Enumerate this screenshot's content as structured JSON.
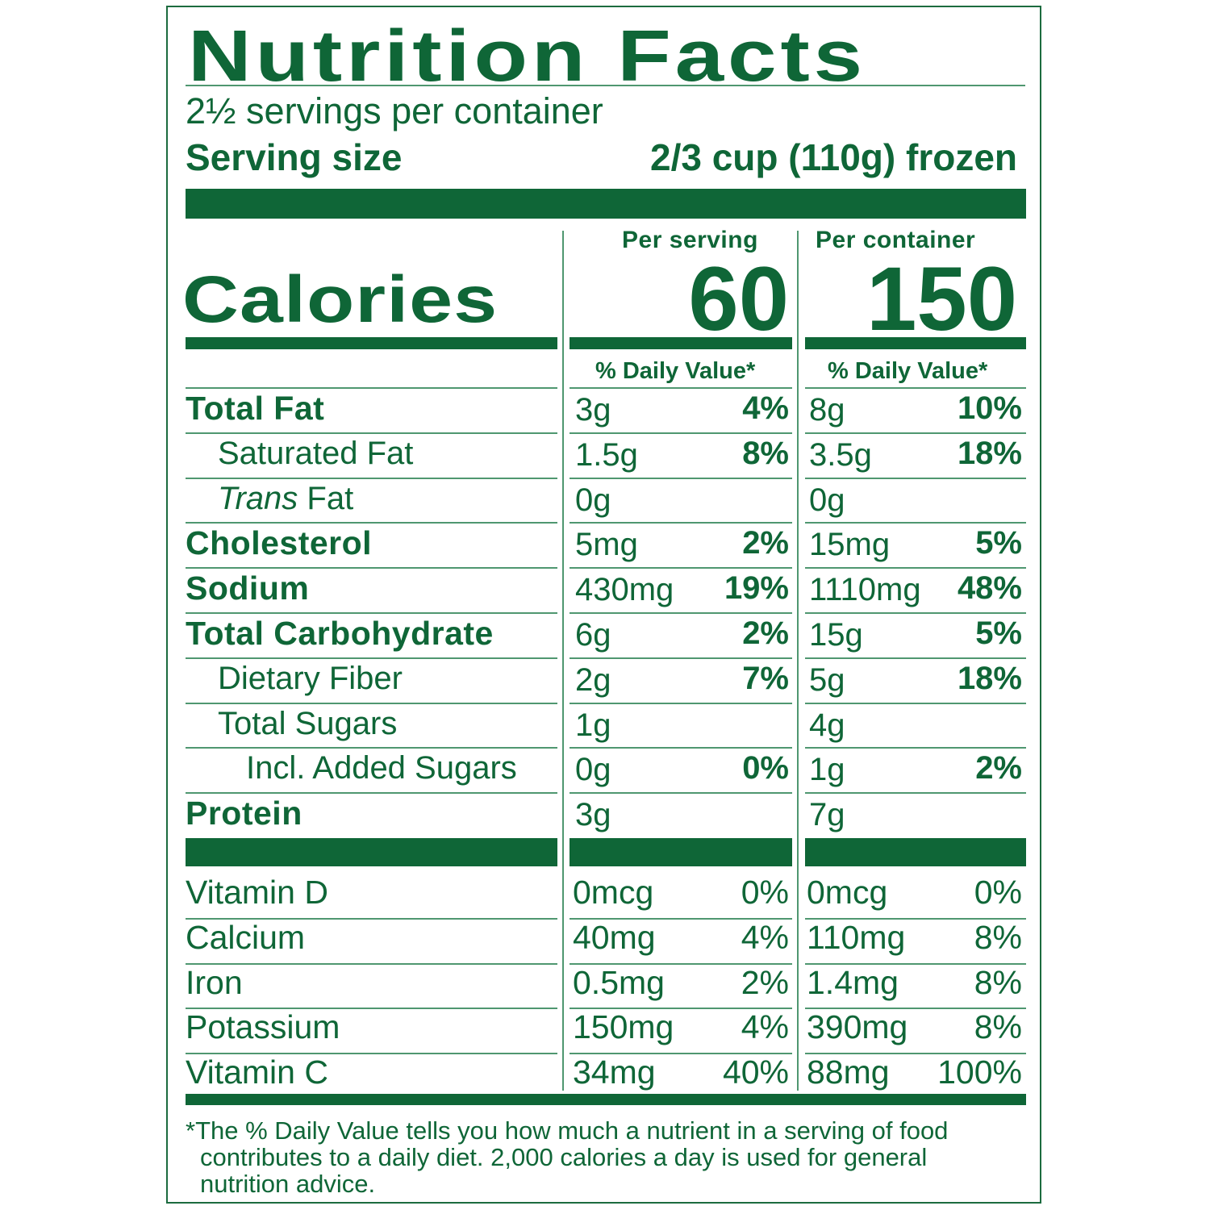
{
  "title": "Nutrition Facts",
  "servings_per_container": "2½ servings per container",
  "serving_size_label": "Serving size",
  "serving_size_value": "2/3 cup (110g) frozen",
  "columns": {
    "per_serving": "Per serving",
    "per_container": "Per container"
  },
  "calories": {
    "label": "Calories",
    "per_serving": "60",
    "per_container": "150"
  },
  "daily_value_header": "% Daily Value*",
  "nutrients": [
    {
      "name": "Total Fat",
      "bold": true,
      "indent": 0,
      "serving_amount": "3g",
      "serving_dv": "4%",
      "container_amount": "8g",
      "container_dv": "10%"
    },
    {
      "name": "Saturated Fat",
      "bold": false,
      "indent": 1,
      "serving_amount": "1.5g",
      "serving_dv": "8%",
      "container_amount": "3.5g",
      "container_dv": "18%"
    },
    {
      "name_italic": "Trans",
      "name": " Fat",
      "bold": false,
      "indent": 1,
      "serving_amount": "0g",
      "serving_dv": "",
      "container_amount": "0g",
      "container_dv": ""
    },
    {
      "name": "Cholesterol",
      "bold": true,
      "indent": 0,
      "serving_amount": "5mg",
      "serving_dv": "2%",
      "container_amount": "15mg",
      "container_dv": "5%"
    },
    {
      "name": "Sodium",
      "bold": true,
      "indent": 0,
      "serving_amount": "430mg",
      "serving_dv": "19%",
      "container_amount": "1110mg",
      "container_dv": "48%"
    },
    {
      "name": "Total Carbohydrate",
      "bold": true,
      "indent": 0,
      "serving_amount": "6g",
      "serving_dv": "2%",
      "container_amount": "15g",
      "container_dv": "5%"
    },
    {
      "name": "Dietary Fiber",
      "bold": false,
      "indent": 1,
      "serving_amount": "2g",
      "serving_dv": "7%",
      "container_amount": "5g",
      "container_dv": "18%"
    },
    {
      "name": "Total Sugars",
      "bold": false,
      "indent": 1,
      "serving_amount": "1g",
      "serving_dv": "",
      "container_amount": "4g",
      "container_dv": ""
    },
    {
      "name": "Incl. Added Sugars",
      "bold": false,
      "indent": 2,
      "serving_amount": "0g",
      "serving_dv": "0%",
      "container_amount": "1g",
      "container_dv": "2%"
    },
    {
      "name": "Protein",
      "bold": true,
      "indent": 0,
      "serving_amount": "3g",
      "serving_dv": "",
      "container_amount": "7g",
      "container_dv": ""
    }
  ],
  "vitamins": [
    {
      "name": "Vitamin D",
      "serving_amount": "0mcg",
      "serving_dv": "0%",
      "container_amount": "0mcg",
      "container_dv": "0%"
    },
    {
      "name": "Calcium",
      "serving_amount": "40mg",
      "serving_dv": "4%",
      "container_amount": "110mg",
      "container_dv": "8%"
    },
    {
      "name": "Iron",
      "serving_amount": "0.5mg",
      "serving_dv": "2%",
      "container_amount": "1.4mg",
      "container_dv": "8%"
    },
    {
      "name": "Potassium",
      "serving_amount": "150mg",
      "serving_dv": "4%",
      "container_amount": "390mg",
      "container_dv": "8%"
    },
    {
      "name": "Vitamin C",
      "serving_amount": "34mg",
      "serving_dv": "40%",
      "container_amount": "88mg",
      "container_dv": "100%"
    }
  ],
  "footnote": {
    "line1": "*The % Daily Value tells you how much a nutrient in a serving of food",
    "line2": "contributes to a daily diet. 2,000 calories a day is used for general",
    "line3": "nutrition advice."
  },
  "colors": {
    "ink": "#0f6637",
    "rule": "#4f9770",
    "background": "#ffffff"
  }
}
